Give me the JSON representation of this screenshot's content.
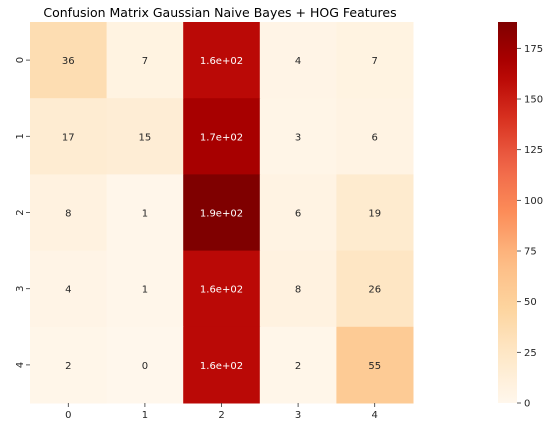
{
  "chart_data": {
    "type": "heatmap",
    "title": "Confusion Matrix Gaussian Naive Bayes + HOG Features",
    "x_categories": [
      "0",
      "1",
      "2",
      "3",
      "4"
    ],
    "y_categories": [
      "0",
      "1",
      "2",
      "3",
      "4"
    ],
    "values": [
      [
        36,
        7,
        160,
        4,
        7
      ],
      [
        17,
        15,
        170,
        3,
        6
      ],
      [
        8,
        1,
        190,
        6,
        19
      ],
      [
        4,
        1,
        160,
        8,
        26
      ],
      [
        2,
        0,
        160,
        2,
        55
      ]
    ],
    "cell_labels": [
      [
        "36",
        "7",
        "1.6e+02",
        "4",
        "7"
      ],
      [
        "17",
        "15",
        "1.7e+02",
        "3",
        "6"
      ],
      [
        "8",
        "1",
        "1.9e+02",
        "6",
        "19"
      ],
      [
        "4",
        "1",
        "1.6e+02",
        "8",
        "26"
      ],
      [
        "2",
        "0",
        "1.6e+02",
        "2",
        "55"
      ]
    ],
    "colormap": "OrRd",
    "color_range": [
      0,
      188
    ],
    "colorbar_ticks": [
      0,
      25,
      50,
      75,
      100,
      125,
      150,
      175
    ],
    "xlabel": "",
    "ylabel": ""
  }
}
